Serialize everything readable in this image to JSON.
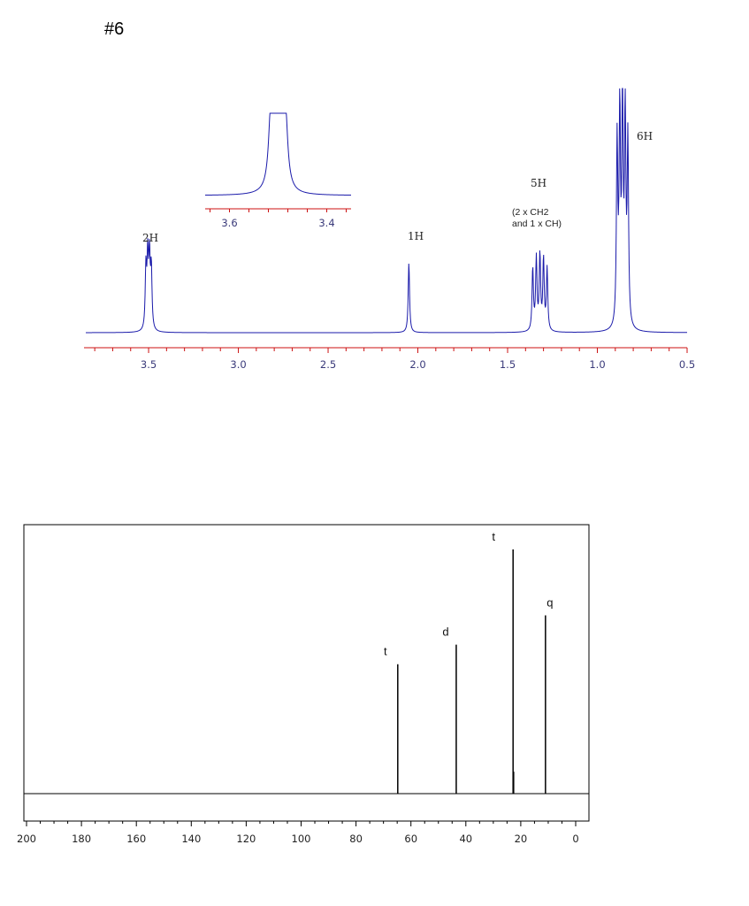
{
  "page": {
    "problem_label": "#6"
  },
  "colors": {
    "h_spectrum": "#1a1aaa",
    "axis_red": "#cc1111",
    "c_spectrum": "#000000"
  },
  "chart_data": [
    {
      "type": "line",
      "kind": "1H NMR spectrum",
      "xlabel": "",
      "ylabel": "",
      "xlim": [
        3.85,
        0.5
      ],
      "x_reversed": true,
      "x_ticks": [
        3.5,
        3.0,
        2.5,
        2.0,
        1.5,
        1.0,
        0.5
      ],
      "x_tick_labels": [
        "3.5",
        "3.0",
        "2.5",
        "2.0",
        "1.5",
        "1.0",
        "0.5"
      ],
      "peaks": [
        {
          "shift": 3.5,
          "multiplet_lines": [
            3.515,
            3.505,
            3.495,
            3.485
          ],
          "rel_height": 0.9
        },
        {
          "shift": 2.05,
          "multiplet_lines": [
            2.05
          ],
          "rel_height": 0.88
        },
        {
          "shift": 1.32,
          "multiplet_lines": [
            1.36,
            1.34,
            1.32,
            1.3,
            1.28
          ],
          "rel_height": 0.95
        },
        {
          "shift": 0.86,
          "multiplet_lines": [
            0.89,
            0.875,
            0.86,
            0.845,
            0.83
          ],
          "rel_height": 2.8
        }
      ],
      "integration_labels": [
        {
          "shift": 3.5,
          "text": "2H"
        },
        {
          "shift": 2.05,
          "text": "1H"
        },
        {
          "shift": 1.32,
          "text": "5H",
          "note_lines": [
            "(2 x CH2",
            "and 1 x CH)"
          ]
        },
        {
          "shift": 0.86,
          "text": "6H"
        }
      ],
      "inset": {
        "xlim": [
          3.65,
          3.35
        ],
        "x_ticks": [
          3.6,
          3.4
        ],
        "x_tick_labels": [
          "3.6",
          "3.4"
        ],
        "multiplet_lines": [
          3.515,
          3.505,
          3.495,
          3.485
        ]
      }
    },
    {
      "type": "bar",
      "kind": "13C NMR spectrum (stick)",
      "xlabel": "",
      "ylabel": "",
      "xlim": [
        200,
        0
      ],
      "x_reversed": true,
      "x_ticks": [
        200,
        180,
        160,
        140,
        120,
        100,
        80,
        60,
        40,
        20,
        0
      ],
      "x_tick_labels": [
        "200",
        "180",
        "160",
        "140",
        "120",
        "100",
        "80",
        "60",
        "40",
        "20",
        "0"
      ],
      "peaks": [
        {
          "shift": 64.8,
          "rel_height": 0.53,
          "multiplicity": "t"
        },
        {
          "shift": 43.5,
          "rel_height": 0.61,
          "multiplicity": "d"
        },
        {
          "shift": 22.8,
          "rel_height": 1.0,
          "multiplicity": "t"
        },
        {
          "shift": 22.6,
          "rel_height": 0.09,
          "multiplicity": ""
        },
        {
          "shift": 11.0,
          "rel_height": 0.73,
          "multiplicity": "q"
        }
      ]
    }
  ]
}
